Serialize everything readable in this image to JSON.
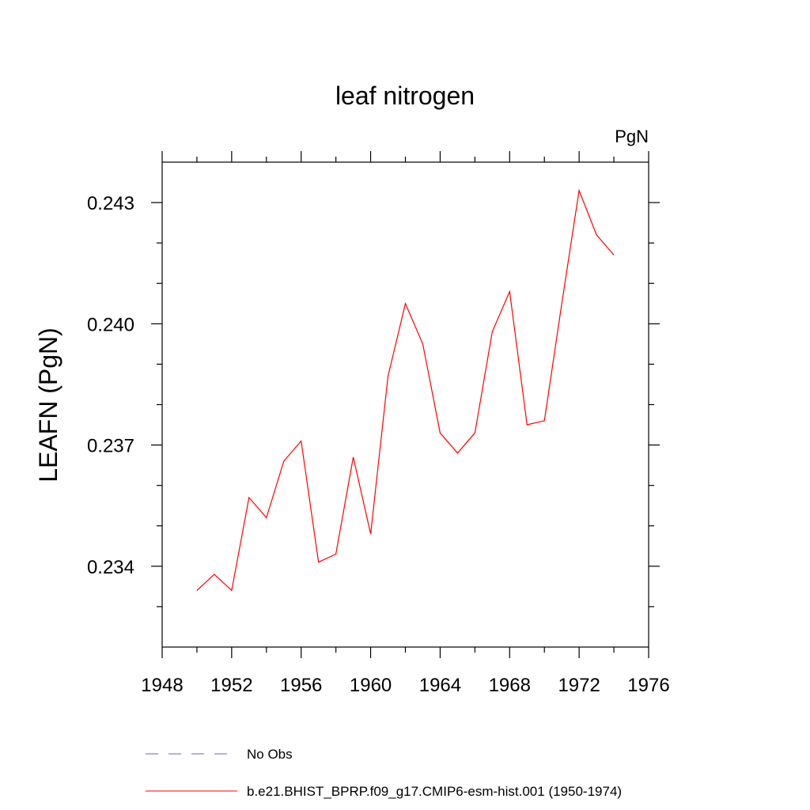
{
  "chart_data": {
    "type": "line",
    "title": "leaf nitrogen",
    "units_label": "PgN",
    "xlabel": "",
    "ylabel": "LEAFN  (PgN)",
    "xlim": [
      1948,
      1976
    ],
    "ylim": [
      0.232,
      0.244
    ],
    "x_ticks": [
      1948,
      1952,
      1956,
      1960,
      1964,
      1968,
      1972,
      1976
    ],
    "x_tick_labels": [
      "1948",
      "1952",
      "1956",
      "1960",
      "1964",
      "1968",
      "1972",
      "1976"
    ],
    "y_ticks": [
      0.234,
      0.237,
      0.24,
      0.243
    ],
    "y_tick_labels": [
      "0.234",
      "0.237",
      "0.240",
      "0.243"
    ],
    "grid": false,
    "legend_position": "bottom",
    "series": [
      {
        "name": "b.e21.BHIST_BPRP.f09_g17.CMIP6-esm-hist.001 (1950-1974)",
        "color": "#ff0000",
        "style": "solid",
        "x": [
          1950,
          1951,
          1952,
          1953,
          1954,
          1955,
          1956,
          1957,
          1958,
          1959,
          1960,
          1961,
          1962,
          1963,
          1964,
          1965,
          1966,
          1967,
          1968,
          1969,
          1970,
          1971,
          1972,
          1973,
          1974
        ],
        "y": [
          0.2334,
          0.2338,
          0.2334,
          0.2357,
          0.2352,
          0.2366,
          0.2371,
          0.2341,
          0.2343,
          0.2367,
          0.2348,
          0.2387,
          0.2405,
          0.2395,
          0.2373,
          0.2368,
          0.2373,
          0.2398,
          0.2408,
          0.2375,
          0.2376,
          0.2405,
          0.2433,
          0.2422,
          0.2417
        ]
      }
    ],
    "legend": [
      {
        "label": "No Obs",
        "color": "#6666cc",
        "style": "dashed"
      },
      {
        "label": "b.e21.BHIST_BPRP.f09_g17.CMIP6-esm-hist.001 (1950-1974)",
        "color": "#ff0000",
        "style": "solid"
      }
    ]
  }
}
